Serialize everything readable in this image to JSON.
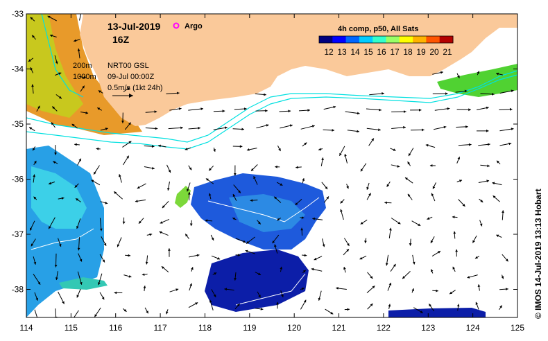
{
  "date_label": "13-Jul-2019",
  "time_label": "16Z",
  "argo_label": "Argo",
  "legend": {
    "title": "4h comp, p50, All Sats",
    "ticks": [
      "12",
      "13",
      "14",
      "15",
      "16",
      "17",
      "18",
      "19",
      "20",
      "21"
    ],
    "colors": [
      "#00007f",
      "#0000ff",
      "#0066ff",
      "#00ccff",
      "#33ffcc",
      "#99ff66",
      "#ffff00",
      "#ffb300",
      "#ff5500",
      "#b40000"
    ]
  },
  "info": {
    "depth_200": "200m",
    "depth_1000": "1000m",
    "product": "NRT00 GSL",
    "valid": "09-Jul 00:00Z",
    "scale": "0.5m/s (1kt 24h)"
  },
  "credit": "© IMOS 14-Jul-2019 13:13 Hobart",
  "axes": {
    "x_ticks": [
      "114",
      "115",
      "116",
      "117",
      "118",
      "119",
      "120",
      "121",
      "122",
      "123",
      "124",
      "125"
    ],
    "y_ticks": [
      "-33",
      "-34",
      "-35",
      "-36",
      "-37",
      "-38"
    ]
  },
  "colors": {
    "land": "#fac99a",
    "shelf_line": "#00e0e0",
    "frame": "#000000"
  }
}
